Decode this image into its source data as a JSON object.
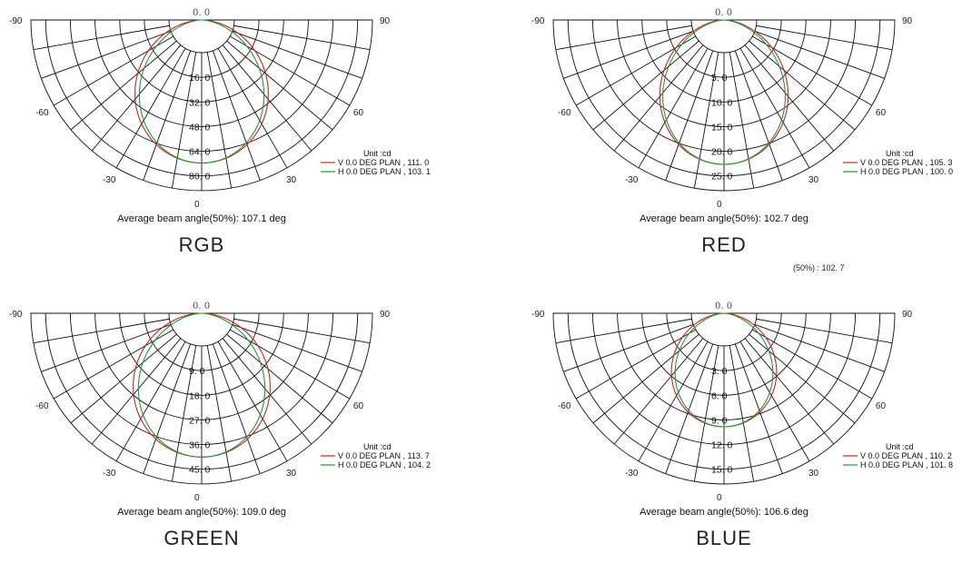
{
  "note_text": "(50%) : 102. 7",
  "chart_data": [
    {
      "type": "polar",
      "panel_label": "RGB",
      "zero_label": "0. 0",
      "unit": "Unit :cd",
      "angle_ticks": [
        -90,
        -60,
        -30,
        0,
        30,
        60,
        90
      ],
      "rings": [
        "16. 0",
        "32. 0",
        "48. 0",
        "64. 0",
        "80. 0"
      ],
      "rmax": 96,
      "peak": 84,
      "beam_angle_text": "Average beam angle(50%): 107.1 deg",
      "series": [
        {
          "name": "V 0.0  DEG  PLAN , 111. 0",
          "color": "#d42020",
          "beam": 111.0
        },
        {
          "name": "H 0.0  DEG  PLAN , 103. 1",
          "color": "#1f9a3a",
          "beam": 103.1
        }
      ]
    },
    {
      "type": "polar",
      "panel_label": "RED",
      "zero_label": "0. 0",
      "unit": "Unit :cd",
      "angle_ticks": [
        -90,
        -60,
        -30,
        0,
        30,
        60,
        90
      ],
      "rings": [
        "5. 0",
        "10. 0",
        "15. 0",
        "20. 0",
        "25. 0"
      ],
      "rmax": 30,
      "peak": 26.5,
      "beam_angle_text": "Average beam angle(50%): 102.7 deg",
      "series": [
        {
          "name": "V 0.0  DEG  PLAN , 105. 3",
          "color": "#d42020",
          "beam": 105.3
        },
        {
          "name": "H 0.0  DEG  PLAN , 100. 0",
          "color": "#1f9a3a",
          "beam": 100.0
        }
      ]
    },
    {
      "type": "polar",
      "panel_label": "GREEN",
      "zero_label": "0. 0",
      "unit": "Unit :cd",
      "angle_ticks": [
        -90,
        -60,
        -30,
        0,
        30,
        60,
        90
      ],
      "rings": [
        "9. 0",
        "18. 0",
        "27. 0",
        "36. 0",
        "45. 0"
      ],
      "rmax": 54,
      "peak": 47.5,
      "beam_angle_text": "Average beam angle(50%): 109.0 deg",
      "series": [
        {
          "name": "V 0.0  DEG  PLAN , 113. 7",
          "color": "#d42020",
          "beam": 113.7
        },
        {
          "name": "H 0.0  DEG  PLAN , 104. 2",
          "color": "#1f9a3a",
          "beam": 104.2
        }
      ]
    },
    {
      "type": "polar",
      "panel_label": "BLUE",
      "zero_label": "0. 0",
      "unit": "Unit :cd",
      "angle_ticks": [
        -90,
        -60,
        -30,
        0,
        30,
        60,
        90
      ],
      "rings": [
        "3. 0",
        "6. 0",
        "9. 0",
        "12. 0",
        "15. 0"
      ],
      "rmax": 18,
      "peak": 12.5,
      "beam_angle_text": "Average beam angle(50%): 106.6 deg",
      "series": [
        {
          "name": "V 0.0  DEG  PLAN , 110. 2",
          "color": "#d42020",
          "beam": 110.2
        },
        {
          "name": "H 0.0  DEG  PLAN , 101. 8",
          "color": "#1f9a3a",
          "beam": 101.8
        }
      ]
    }
  ]
}
